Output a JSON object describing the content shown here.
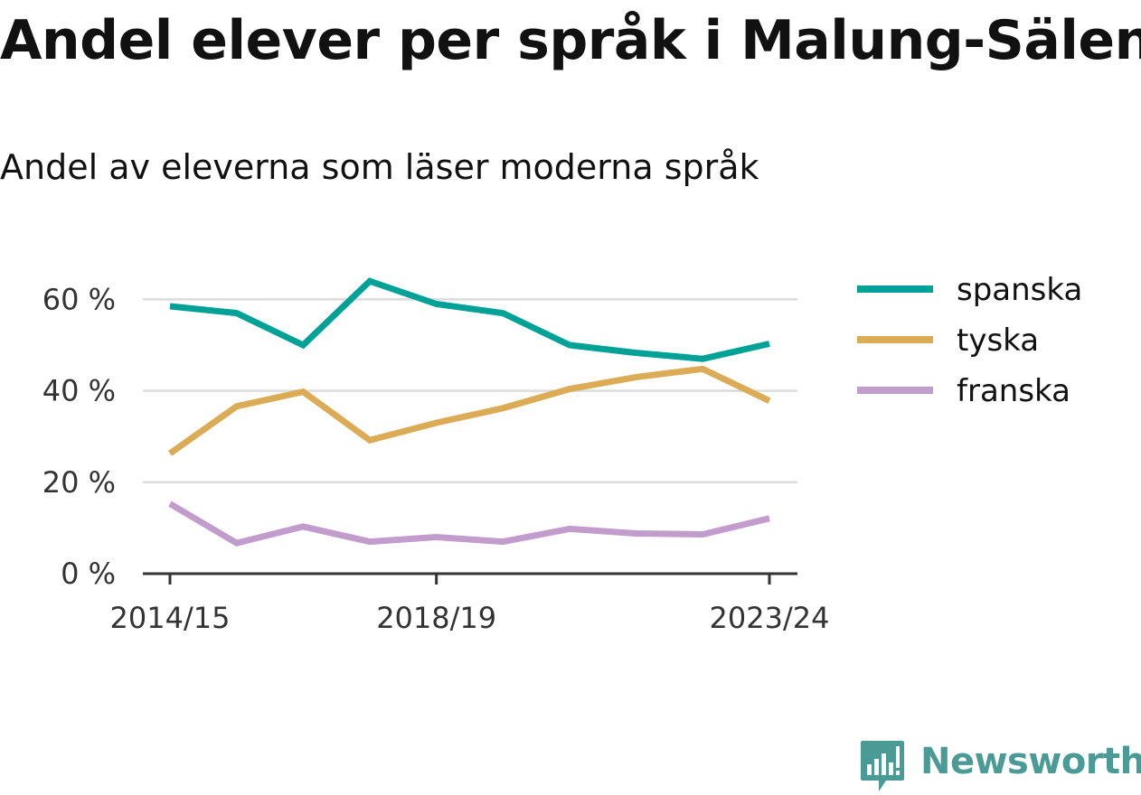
{
  "chart_data": {
    "type": "line",
    "title": "Andel elever per språk i Malung-Sälen",
    "subtitle": "Andel av eleverna som läser moderna språk",
    "x": [
      "2014/15",
      "2015/16",
      "2016/17",
      "2017/18",
      "2018/19",
      "2019/20",
      "2020/21",
      "2021/22",
      "2022/23",
      "2023/24"
    ],
    "x_tick_labels": [
      "2014/15",
      "2018/19",
      "2023/24"
    ],
    "y_ticks": [
      0,
      20,
      40,
      60
    ],
    "y_tick_labels": [
      "0 %",
      "20 %",
      "40 %",
      "60 %"
    ],
    "ylim": [
      0,
      67
    ],
    "grid": true,
    "legend_position": "right",
    "series": [
      {
        "name": "spanska",
        "color": "#00a297",
        "values": [
          58.5,
          57,
          50,
          64,
          59,
          57,
          50,
          48.3,
          47,
          50.3
        ]
      },
      {
        "name": "tyska",
        "color": "#dcab55",
        "values": [
          26.3,
          36.6,
          39.8,
          29.2,
          33,
          36.2,
          40.4,
          43,
          44.8,
          37.8
        ]
      },
      {
        "name": "franska",
        "color": "#c19ccc",
        "values": [
          15.3,
          6.7,
          10.3,
          7,
          8,
          7,
          9.8,
          8.8,
          8.6,
          12.1
        ]
      }
    ]
  },
  "brand": {
    "name": "Newsworthy",
    "logo_icon": "newsworthy-logo-icon",
    "color": "#4a9a96"
  }
}
